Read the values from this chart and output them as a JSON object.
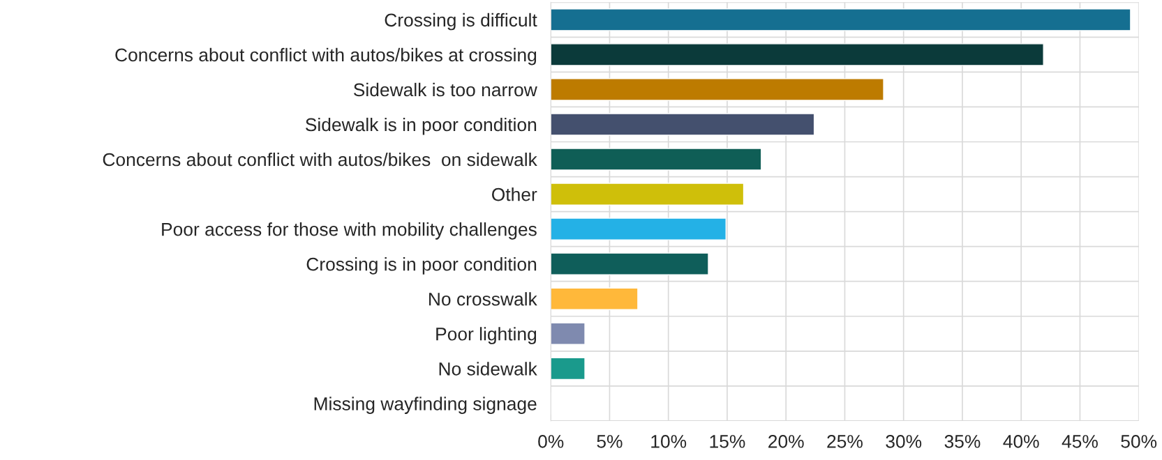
{
  "chart_data": {
    "type": "bar",
    "orientation": "horizontal",
    "categories": [
      "Crossing is difficult",
      "Concerns about conflict with autos/bikes at crossing",
      "Sidewalk is too narrow",
      "Sidewalk is in poor condition",
      "Concerns about conflict with autos/bikes  on sidewalk",
      "Other",
      "Poor access for those with mobility challenges",
      "Crossing is in poor condition",
      "No crosswalk",
      "Poor lighting",
      "No sidewalk",
      "Missing wayfinding signage"
    ],
    "values": [
      49.3,
      41.9,
      28.3,
      22.4,
      17.9,
      16.4,
      14.9,
      13.4,
      7.4,
      2.9,
      2.9,
      0
    ],
    "colors": [
      "#156f91",
      "#0b3a3a",
      "#bd7b00",
      "#44506e",
      "#0f5e56",
      "#cfbf0a",
      "#24b1e6",
      "#0f5e5a",
      "#ffb83a",
      "#7f8aaf",
      "#1a9a8c",
      null
    ],
    "xlim": [
      0,
      50
    ],
    "xticks": [
      {
        "value": 0,
        "label": "0%"
      },
      {
        "value": 5,
        "label": "5%"
      },
      {
        "value": 10,
        "label": "10%"
      },
      {
        "value": 15,
        "label": "15%"
      },
      {
        "value": 20,
        "label": "20%"
      },
      {
        "value": 25,
        "label": "25%"
      },
      {
        "value": 30,
        "label": "30%"
      },
      {
        "value": 35,
        "label": "35%"
      },
      {
        "value": 40,
        "label": "40%"
      },
      {
        "value": 45,
        "label": "45%"
      },
      {
        "value": 50,
        "label": "50%"
      }
    ],
    "grid": true
  }
}
